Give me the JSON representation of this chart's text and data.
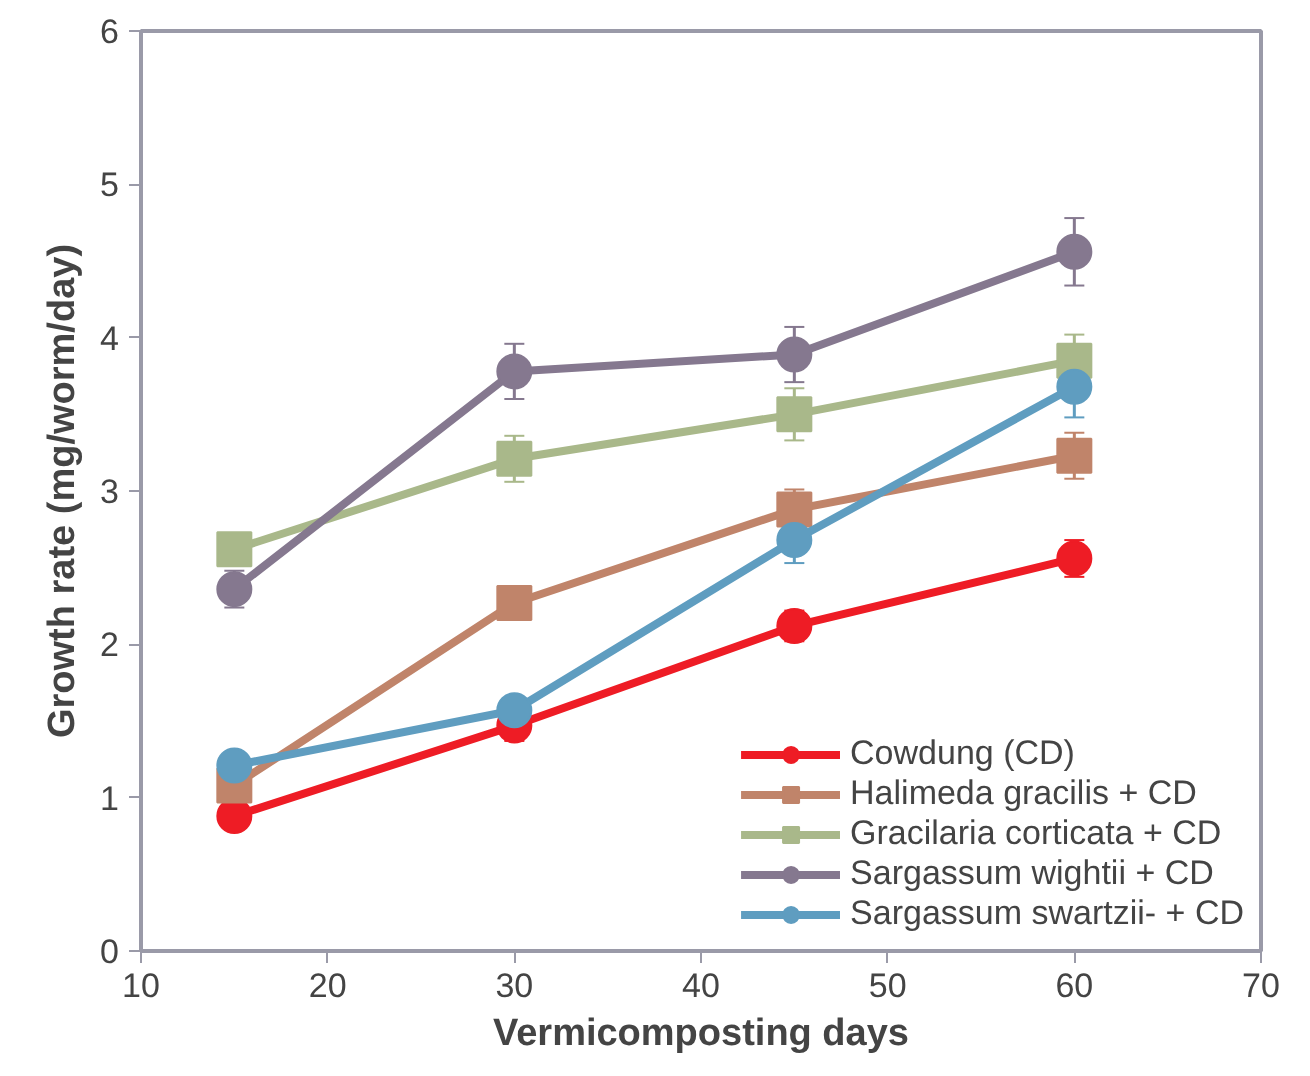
{
  "chart_data": {
    "type": "line",
    "xlabel": "Vermicomposting days",
    "ylabel": "Growth rate (mg/worm/day)",
    "x": [
      15,
      30,
      45,
      60
    ],
    "xlim": [
      10,
      70
    ],
    "xticks": [
      10,
      20,
      30,
      40,
      50,
      60,
      70
    ],
    "ylim": [
      0,
      6
    ],
    "yticks": [
      0,
      1,
      2,
      3,
      4,
      5,
      6
    ],
    "grid": false,
    "legend": "bottom right",
    "line_style": "solid",
    "series": [
      {
        "name": "Cowdung (CD)",
        "color": "#ee1c25",
        "marker": "circle",
        "values": [
          0.88,
          1.47,
          2.12,
          2.56
        ],
        "errors": [
          0.05,
          0.1,
          0.1,
          0.12
        ]
      },
      {
        "name": "Halimeda gracilis + CD",
        "color": "#c0846a",
        "marker": "square",
        "values": [
          1.08,
          2.27,
          2.88,
          3.23
        ],
        "errors": [
          0.08,
          0.1,
          0.13,
          0.15
        ]
      },
      {
        "name": "Gracilaria corticata + CD",
        "color": "#a9b88a",
        "marker": "square",
        "values": [
          2.62,
          3.21,
          3.5,
          3.85
        ],
        "errors": [
          0.1,
          0.15,
          0.17,
          0.17
        ]
      },
      {
        "name": "Sargassum wightii + CD",
        "color": "#85788f",
        "marker": "circle",
        "values": [
          2.36,
          3.78,
          3.89,
          4.56
        ],
        "errors": [
          0.12,
          0.18,
          0.18,
          0.22
        ]
      },
      {
        "name": "Sargassum swartzii- + CD",
        "color": "#5f9dc0",
        "marker": "circle",
        "values": [
          1.21,
          1.57,
          2.68,
          3.68
        ],
        "errors": [
          0.05,
          0.05,
          0.15,
          0.2
        ]
      }
    ]
  }
}
